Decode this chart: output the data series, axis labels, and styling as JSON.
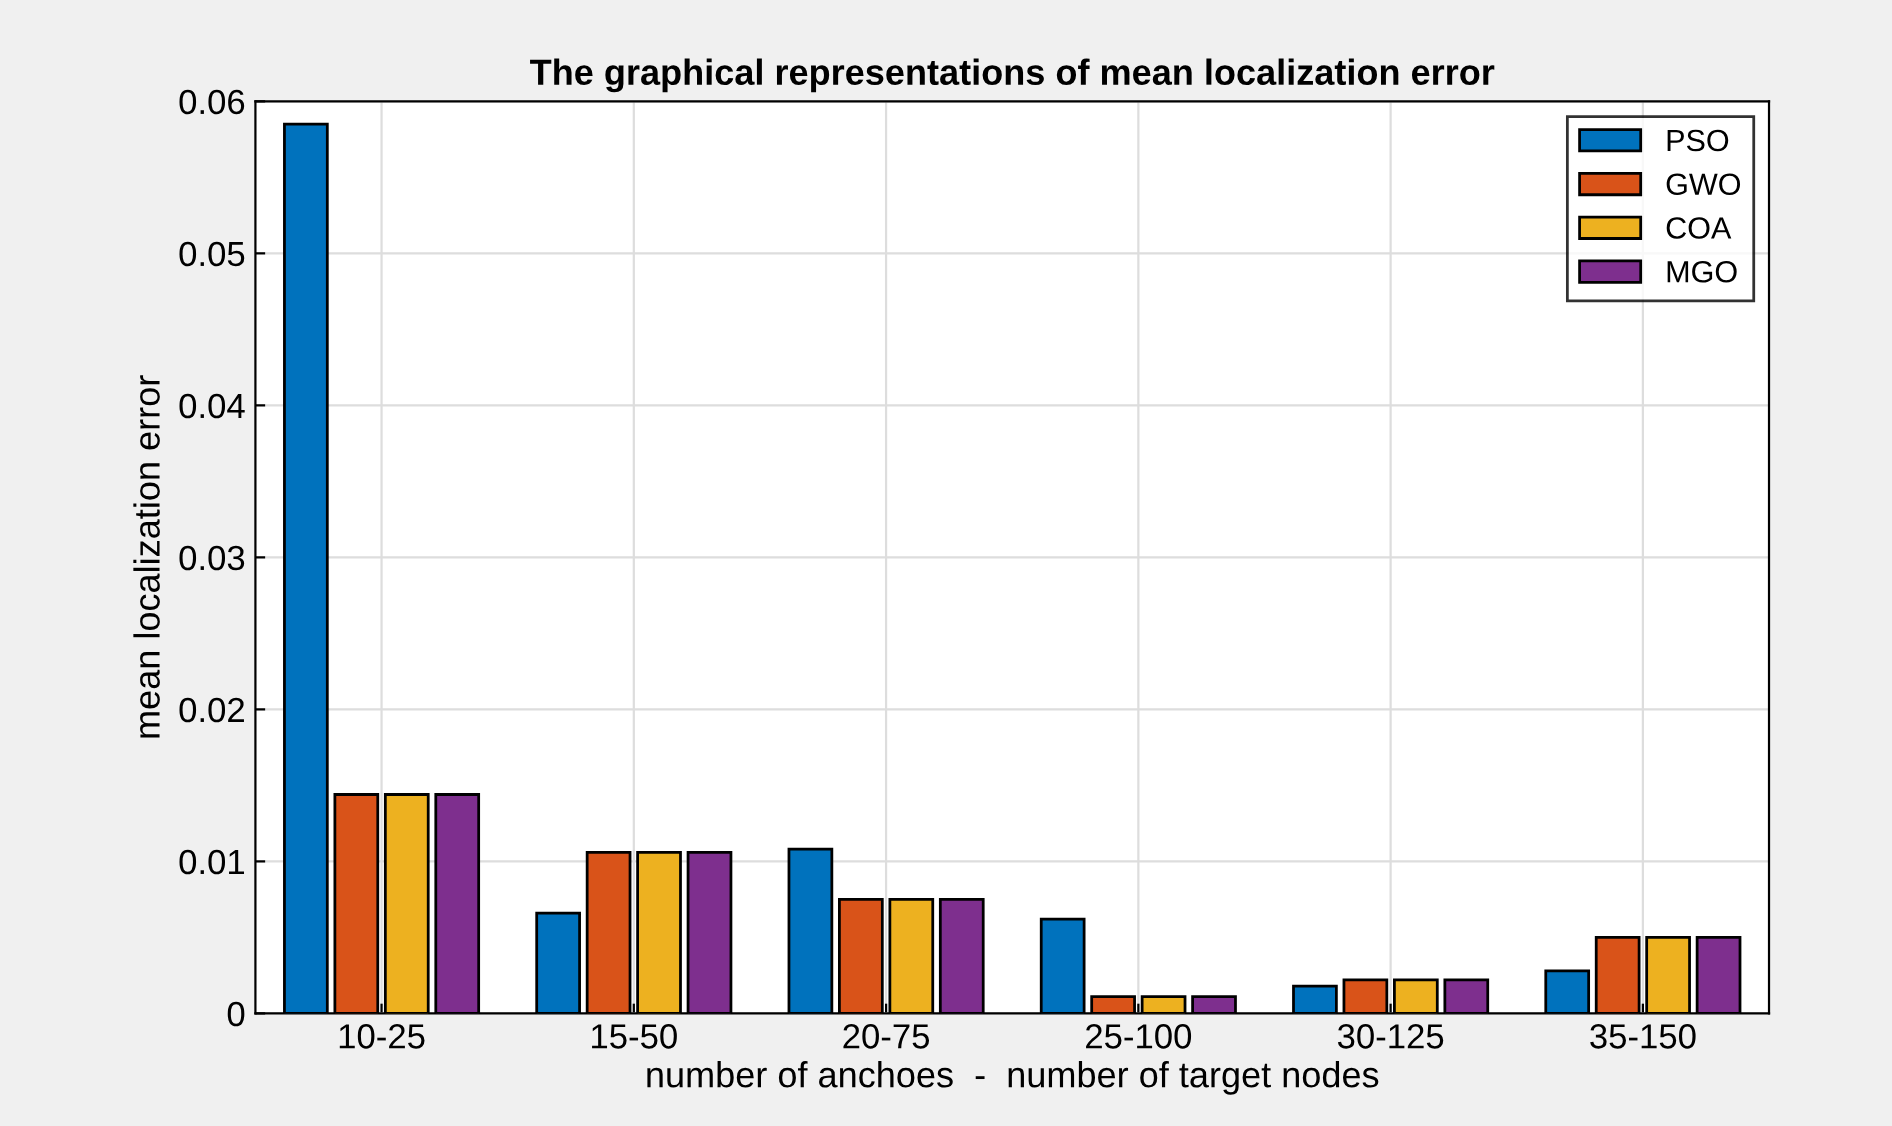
{
  "chart_data": {
    "type": "bar",
    "title": "The graphical representations of mean localization error",
    "xlabel": "number of anchoes  -  number of target nodes",
    "ylabel": "mean localization error",
    "categories": [
      "10-25",
      "15-50",
      "20-75",
      "25-100",
      "30-125",
      "35-150"
    ],
    "series": [
      {
        "name": "PSO",
        "color": "#0072bd",
        "values": [
          0.0585,
          0.0066,
          0.0108,
          0.0062,
          0.0018,
          0.0028
        ]
      },
      {
        "name": "GWO",
        "color": "#d95319",
        "values": [
          0.0144,
          0.0106,
          0.0075,
          0.0011,
          0.0022,
          0.005
        ]
      },
      {
        "name": "COA",
        "color": "#edb120",
        "values": [
          0.0144,
          0.0106,
          0.0075,
          0.0011,
          0.0022,
          0.005
        ]
      },
      {
        "name": "MGO",
        "color": "#7e2f8e",
        "values": [
          0.0144,
          0.0106,
          0.0075,
          0.0011,
          0.0022,
          0.005
        ]
      }
    ],
    "ylim": [
      0,
      0.06
    ],
    "yticks": [
      0,
      0.01,
      0.02,
      0.03,
      0.04,
      0.05,
      0.06
    ],
    "grid": true,
    "legend": "top right"
  }
}
